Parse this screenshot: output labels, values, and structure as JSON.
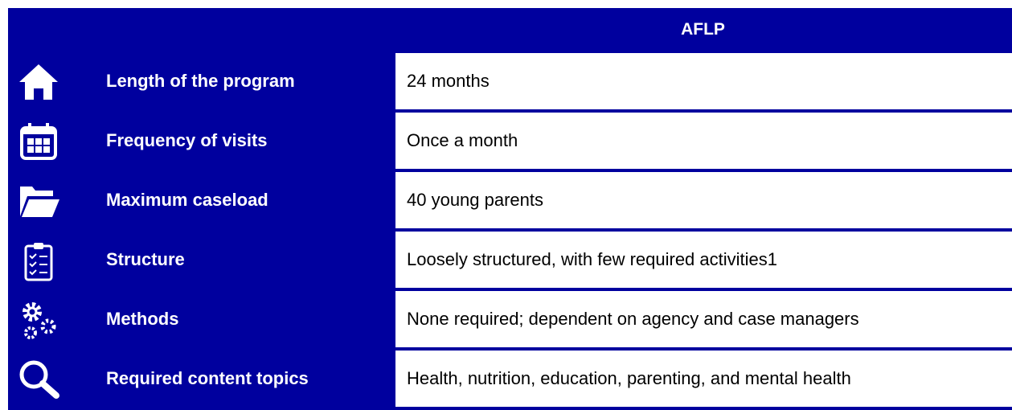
{
  "table": {
    "header": "AFLP",
    "rows": [
      [
        "Length of the program",
        "24 months"
      ],
      [
        "Frequency of visits",
        "Once a month"
      ],
      [
        "Maximum caseload",
        "40 young parents"
      ],
      [
        "Structure",
        "Loosely structured, with few required activities1"
      ],
      [
        "Methods",
        "None required; dependent on agency and case managers"
      ],
      [
        "Required content topics",
        "Health, nutrition, education, parenting, and mental health"
      ]
    ]
  }
}
